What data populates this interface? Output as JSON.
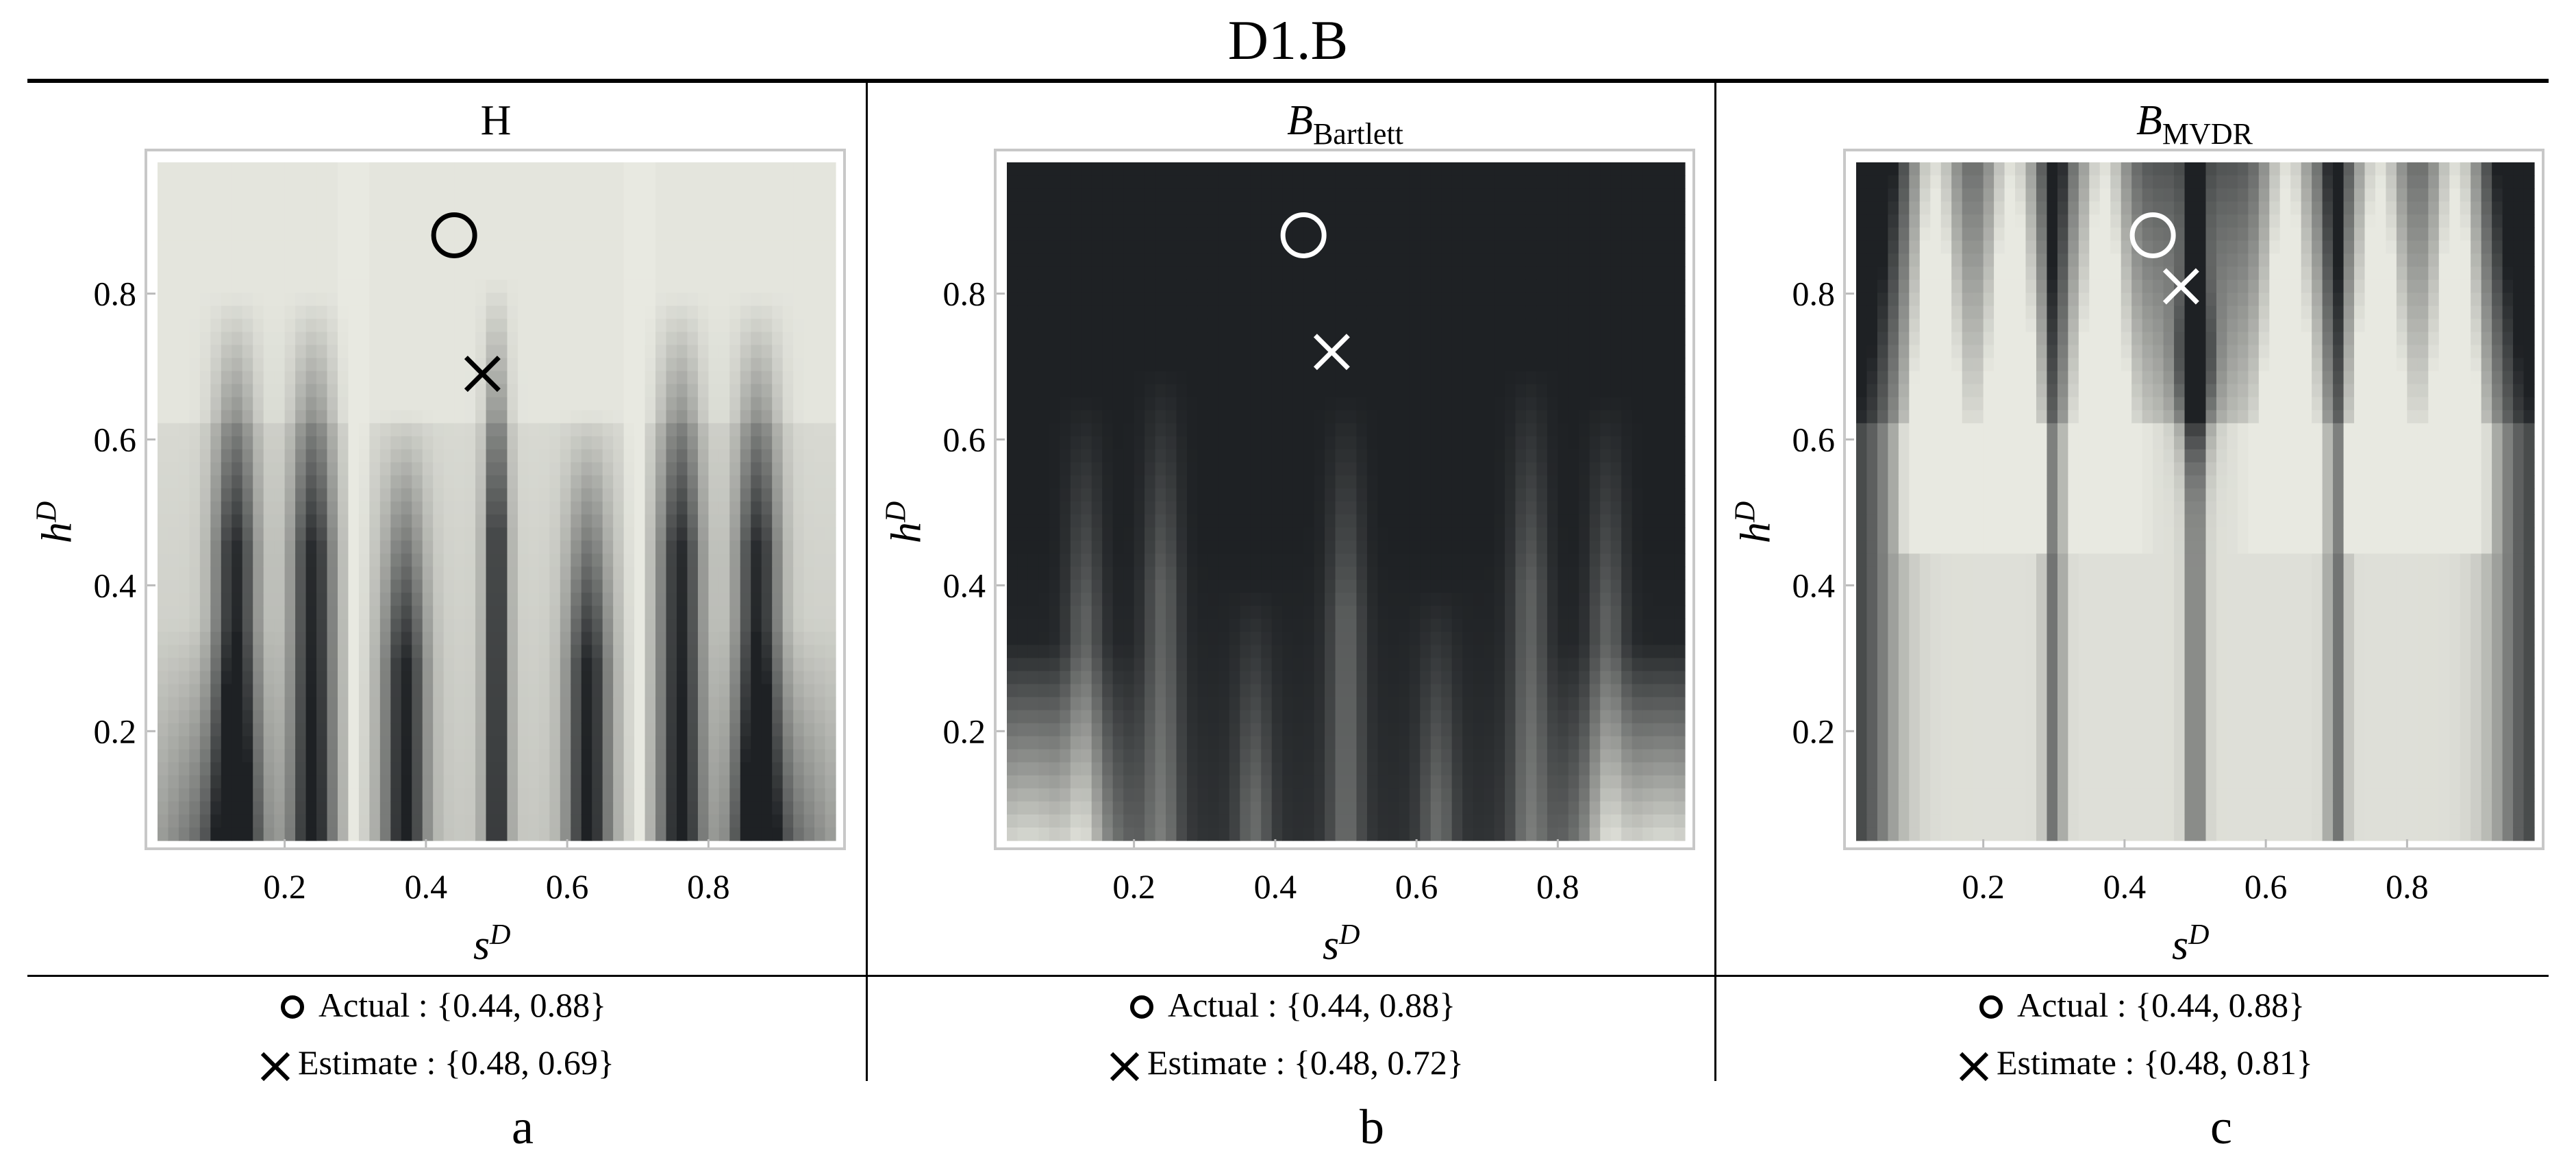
{
  "figure": {
    "title": "D1.B",
    "legend_actual_label": "Actual : ",
    "legend_estimate_label": "Estimate : ",
    "panels": [
      {
        "title_main": "H",
        "title_sub": "",
        "letter": "a",
        "actual_text": "{0.44, 0.88}",
        "estimate_text": "{0.48, 0.69}"
      },
      {
        "title_main": "B",
        "title_sub": "Bartlett",
        "letter": "b",
        "actual_text": "{0.44, 0.88}",
        "estimate_text": "{0.48, 0.72}"
      },
      {
        "title_main": "B",
        "title_sub": "MVDR",
        "letter": "c",
        "actual_text": "{0.44, 0.88}",
        "estimate_text": "{0.48, 0.81}"
      }
    ]
  },
  "chart_data": [
    {
      "type": "heatmap",
      "title": "H",
      "xlabel": "s",
      "xlabel_sup": "D",
      "ylabel": "h",
      "ylabel_sup": "D",
      "xlim": [
        0.02,
        0.98
      ],
      "ylim": [
        0.05,
        0.98
      ],
      "xticks": [
        0.2,
        0.4,
        0.6,
        0.8
      ],
      "yticks": [
        0.2,
        0.4,
        0.6,
        0.8
      ],
      "colormap": {
        "low": "#1e2124",
        "high": "#e8e9e1"
      },
      "background_level": 0.98,
      "bright_base_level": 0.92,
      "dark_streaks_x": [
        0.13,
        0.24,
        0.37,
        0.5,
        0.63,
        0.76,
        0.87
      ],
      "bright_streaks_x": [
        0.3,
        0.7
      ],
      "actual": {
        "x": 0.44,
        "y": 0.88
      },
      "estimate": {
        "x": 0.48,
        "y": 0.69
      },
      "marker_color": "#000000"
    },
    {
      "type": "heatmap",
      "title": "B_Bartlett",
      "xlabel": "s",
      "xlabel_sup": "D",
      "ylabel": "h",
      "ylabel_sup": "D",
      "xlim": [
        0.02,
        0.98
      ],
      "ylim": [
        0.05,
        0.98
      ],
      "xticks": [
        0.2,
        0.4,
        0.6,
        0.8
      ],
      "yticks": [
        0.2,
        0.4,
        0.6,
        0.8
      ],
      "colormap": {
        "low": "#1e2124",
        "high": "#e8e9e1"
      },
      "background_level": 0.0,
      "bright_corners": true,
      "light_streaks_x": [
        0.13,
        0.24,
        0.37,
        0.5,
        0.63,
        0.76,
        0.87
      ],
      "actual": {
        "x": 0.44,
        "y": 0.88
      },
      "estimate": {
        "x": 0.48,
        "y": 0.72
      },
      "marker_color": "#ffffff"
    },
    {
      "type": "heatmap",
      "title": "B_MVDR",
      "xlabel": "s",
      "xlabel_sup": "D",
      "ylabel": "h",
      "ylabel_sup": "D",
      "xlim": [
        0.02,
        0.98
      ],
      "ylim": [
        0.05,
        0.98
      ],
      "xticks": [
        0.2,
        0.4,
        0.6,
        0.8
      ],
      "yticks": [
        0.2,
        0.4,
        0.6,
        0.8
      ],
      "colormap": {
        "low": "#1e2124",
        "high": "#e8e9e1"
      },
      "background_level": 0.95,
      "top_level": 0.25,
      "bright_streaks_x": [
        0.13,
        0.24,
        0.37,
        0.63,
        0.76,
        0.87
      ],
      "dark_streaks_x": [
        0.3,
        0.5,
        0.7
      ],
      "actual": {
        "x": 0.44,
        "y": 0.88
      },
      "estimate": {
        "x": 0.48,
        "y": 0.81
      },
      "marker_color": "#ffffff"
    }
  ]
}
